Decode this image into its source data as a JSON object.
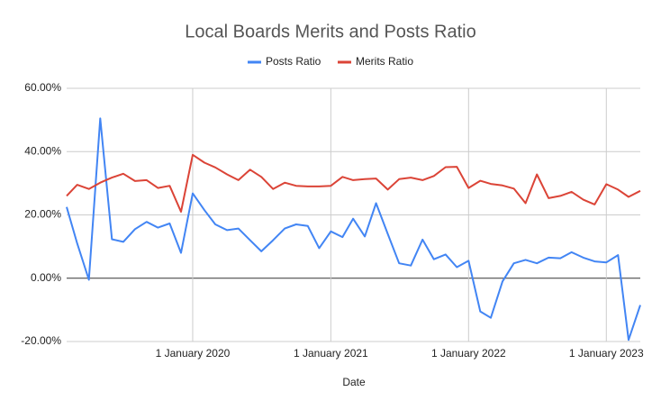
{
  "chart_data": {
    "type": "line",
    "title": "Local Boards Merits and Posts Ratio",
    "x_label": "Date",
    "x": [
      "2019-02-01",
      "2019-03-01",
      "2019-04-01",
      "2019-05-01",
      "2019-06-01",
      "2019-07-01",
      "2019-08-01",
      "2019-09-01",
      "2019-10-01",
      "2019-11-01",
      "2019-12-01",
      "2020-01-01",
      "2020-02-01",
      "2020-03-01",
      "2020-04-01",
      "2020-05-01",
      "2020-06-01",
      "2020-07-01",
      "2020-08-01",
      "2020-09-01",
      "2020-10-01",
      "2020-11-01",
      "2020-12-01",
      "2021-01-01",
      "2021-02-01",
      "2021-03-01",
      "2021-04-01",
      "2021-05-01",
      "2021-06-01",
      "2021-07-01",
      "2021-08-01",
      "2021-09-01",
      "2021-10-01",
      "2021-11-01",
      "2021-12-01",
      "2022-01-01",
      "2022-02-01",
      "2022-03-01",
      "2022-04-01",
      "2022-05-01",
      "2022-06-01",
      "2022-07-01",
      "2022-08-01",
      "2022-09-01",
      "2022-10-01",
      "2022-11-01",
      "2022-12-01",
      "2023-01-01",
      "2023-02-01",
      "2023-03-01",
      "2023-04-01"
    ],
    "series": [
      {
        "name": "Posts Ratio",
        "color": "#4285f4",
        "values": [
          22.5,
          11,
          -0.5,
          50.5,
          12.3,
          11.5,
          15.5,
          17.8,
          16,
          17.3,
          8,
          26.8,
          21.5,
          17,
          15.2,
          15.7,
          12,
          8.5,
          12,
          15.7,
          17,
          16.5,
          9.5,
          14.8,
          13,
          18.8,
          13.2,
          23.7,
          14,
          4.7,
          4,
          12.2,
          6,
          7.5,
          3.5,
          5.5,
          -10.5,
          -12.5,
          -1,
          4.7,
          5.8,
          4.7,
          6.5,
          6.3,
          8.2,
          6.5,
          5.3,
          5,
          7.3,
          -19.5,
          -8.5
        ]
      },
      {
        "name": "Merits Ratio",
        "color": "#db4437",
        "values": [
          26,
          29.5,
          28.2,
          30.2,
          31.8,
          33,
          30.7,
          31,
          28.5,
          29.2,
          21,
          39,
          36.5,
          35,
          32.8,
          31,
          34.3,
          32,
          28.2,
          30.2,
          29.2,
          29,
          29,
          29.2,
          32,
          31,
          31.3,
          31.5,
          28,
          31.3,
          31.8,
          31,
          32.3,
          35.1,
          35.2,
          28.5,
          30.8,
          29.8,
          29.3,
          28.3,
          23.7,
          32.8,
          25.3,
          26,
          27.3,
          24.8,
          23.3,
          29.7,
          28,
          25.7,
          27.6
        ]
      }
    ],
    "xlim": [
      "2019-02-01",
      "2023-04-01"
    ],
    "xticks": [
      {
        "value": "2020-01-01",
        "label": "1 January 2020"
      },
      {
        "value": "2021-01-01",
        "label": "1 January 2021"
      },
      {
        "value": "2022-01-01",
        "label": "1 January 2022"
      },
      {
        "value": "2023-01-01",
        "label": "1 January 2023"
      }
    ],
    "ylim": [
      -20,
      60
    ],
    "yticks": [
      {
        "value": -20,
        "label": "-20.00%"
      },
      {
        "value": 0,
        "label": "0.00%"
      },
      {
        "value": 20,
        "label": "20.00%"
      },
      {
        "value": 40,
        "label": "40.00%"
      },
      {
        "value": 60,
        "label": "60.00%"
      }
    ],
    "grid": true,
    "legend": "top"
  }
}
